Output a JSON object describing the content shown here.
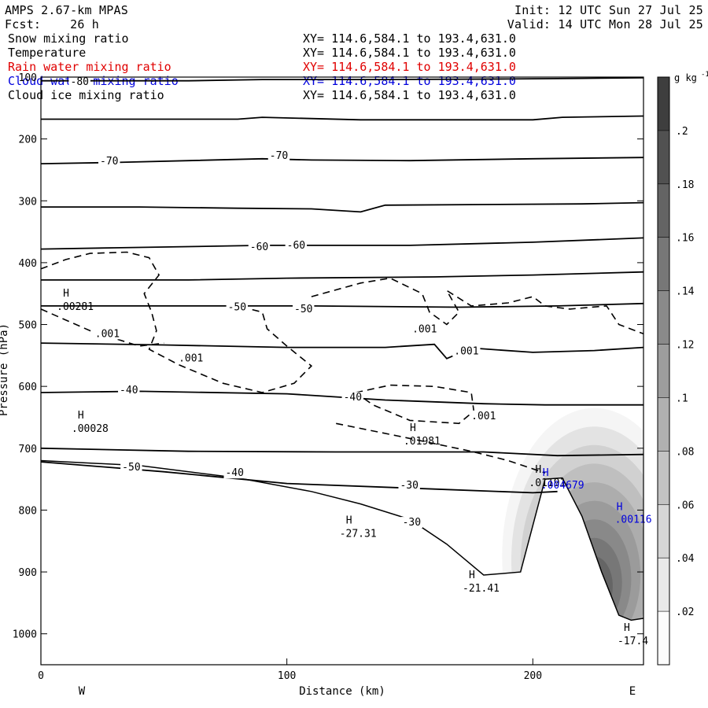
{
  "header": {
    "model": "AMPS 2.67-km MPAS",
    "fcst_label": "Fcst:",
    "fcst_value": "26 h",
    "init": "Init: 12 UTC Sun 27 Jul 25",
    "valid": "Valid: 14 UTC Mon 28 Jul 25"
  },
  "fields": [
    {
      "name": "Snow mixing ratio",
      "xy": "XY= 114.6,584.1 to 193.4,631.0",
      "color": "#000000"
    },
    {
      "name": "Temperature",
      "xy": "XY= 114.6,584.1 to 193.4,631.0",
      "color": "#000000"
    },
    {
      "name": "Rain water mixing ratio",
      "xy": "XY= 114.6,584.1 to 193.4,631.0",
      "color": "#e00000"
    },
    {
      "name": "Cloud water mixing ratio",
      "xy": "XY= 114.6,584.1 to 193.4,631.0",
      "color": "#0000dd"
    },
    {
      "name": "Cloud ice mixing ratio",
      "xy": "XY= 114.6,584.1 to 193.4,631.0",
      "color": "#000000"
    }
  ],
  "chart_data": {
    "type": "contour-cross-section",
    "xlabel": "Distance (km)",
    "ylabel": "Pressure (hPa)",
    "xlim": [
      0,
      245
    ],
    "ylim_hpa": [
      100,
      1050
    ],
    "y_inverted": true,
    "x_ticks": [
      0,
      100,
      200
    ],
    "y_ticks": [
      100,
      200,
      300,
      400,
      500,
      600,
      700,
      800,
      900,
      1000
    ],
    "x_tick_labels": [
      "0",
      "100",
      "200"
    ],
    "y_tick_labels": [
      "100",
      "200",
      "300",
      "400",
      "500",
      "600",
      "700",
      "800",
      "900",
      "1000"
    ],
    "direction_labels": {
      "left": "W",
      "right": "E"
    },
    "colorbar": {
      "unit": "g kg",
      "unit_exp": "-1",
      "levels": [
        0.02,
        0.04,
        0.06,
        0.08,
        0.1,
        0.12,
        0.14,
        0.16,
        0.18,
        0.2
      ],
      "level_labels": [
        ".02",
        ".04",
        ".06",
        ".08",
        ".1",
        ".12",
        ".14",
        ".16",
        ".18",
        ".2"
      ]
    },
    "temperature_lines": [
      {
        "points": [
          [
            0,
            106
          ],
          [
            60,
            106
          ],
          [
            90,
            104
          ],
          [
            140,
            104
          ],
          [
            190,
            103
          ],
          [
            220,
            102
          ],
          [
            245,
            101
          ]
        ],
        "label": "-80"
      },
      {
        "points": [
          [
            0,
            168
          ],
          [
            80,
            168
          ],
          [
            90,
            165
          ],
          [
            130,
            169
          ],
          [
            200,
            169
          ],
          [
            212,
            165
          ],
          [
            245,
            163
          ]
        ]
      },
      {
        "points": [
          [
            0,
            240
          ],
          [
            30,
            238
          ],
          [
            60,
            235
          ],
          [
            90,
            232
          ],
          [
            110,
            234
          ],
          [
            150,
            235
          ],
          [
            200,
            232
          ],
          [
            245,
            230
          ]
        ],
        "label": "-70"
      },
      {
        "points": [
          [
            0,
            310
          ],
          [
            40,
            310
          ],
          [
            80,
            312
          ],
          [
            110,
            313
          ],
          [
            130,
            318
          ],
          [
            140,
            307
          ],
          [
            180,
            306
          ],
          [
            220,
            305
          ],
          [
            245,
            303
          ]
        ]
      },
      {
        "points": [
          [
            0,
            378
          ],
          [
            30,
            376
          ],
          [
            60,
            374
          ],
          [
            90,
            372
          ],
          [
            150,
            372
          ],
          [
            200,
            367
          ],
          [
            245,
            360
          ]
        ],
        "label": "-60"
      },
      {
        "points": [
          [
            0,
            428
          ],
          [
            60,
            428
          ],
          [
            100,
            425
          ],
          [
            160,
            423
          ],
          [
            200,
            420
          ],
          [
            245,
            415
          ]
        ]
      },
      {
        "points": [
          [
            0,
            470
          ],
          [
            60,
            470
          ],
          [
            110,
            470
          ],
          [
            170,
            472
          ],
          [
            210,
            470
          ],
          [
            245,
            466
          ]
        ],
        "label": "-50"
      },
      {
        "points": [
          [
            0,
            530
          ],
          [
            50,
            533
          ],
          [
            100,
            537
          ],
          [
            140,
            537
          ],
          [
            160,
            532
          ],
          [
            165,
            555
          ],
          [
            175,
            538
          ],
          [
            200,
            545
          ],
          [
            225,
            542
          ],
          [
            245,
            537
          ]
        ]
      },
      {
        "points": [
          [
            0,
            610
          ],
          [
            40,
            608
          ],
          [
            100,
            612
          ],
          [
            140,
            622
          ],
          [
            180,
            628
          ],
          [
            205,
            630
          ],
          [
            245,
            630
          ]
        ],
        "label": "-40"
      },
      {
        "points": [
          [
            0,
            700
          ],
          [
            60,
            705
          ],
          [
            120,
            706
          ],
          [
            180,
            706
          ],
          [
            210,
            712
          ],
          [
            245,
            710
          ]
        ]
      },
      {
        "points": [
          [
            0,
            722
          ],
          [
            50,
            738
          ],
          [
            100,
            757
          ],
          [
            160,
            766
          ],
          [
            200,
            772
          ],
          [
            210,
            770
          ]
        ],
        "label": "-30"
      }
    ],
    "temperature_labels": [
      {
        "x": 12,
        "y": 113,
        "text": "-80"
      },
      {
        "x": 24,
        "y": 241,
        "text": "-70"
      },
      {
        "x": 93,
        "y": 232,
        "text": "-70"
      },
      {
        "x": 85,
        "y": 380,
        "text": "-60"
      },
      {
        "x": 100,
        "y": 377,
        "text": "-60"
      },
      {
        "x": 76,
        "y": 477,
        "text": "-50"
      },
      {
        "x": 103,
        "y": 480,
        "text": "-50"
      },
      {
        "x": 32,
        "y": 611,
        "text": "-40"
      },
      {
        "x": 75,
        "y": 745,
        "text": "-40"
      },
      {
        "x": 123,
        "y": 623,
        "text": "-40"
      },
      {
        "x": 33,
        "y": 736,
        "text": "-50"
      },
      {
        "x": 146,
        "y": 765,
        "text": "-30"
      },
      {
        "x": 147,
        "y": 825,
        "text": "-30"
      }
    ],
    "cloud_ice_contours": [
      {
        "points": [
          [
            0,
            410
          ],
          [
            10,
            395
          ],
          [
            20,
            385
          ],
          [
            35,
            383
          ],
          [
            44,
            392
          ],
          [
            48,
            420
          ],
          [
            42,
            450
          ],
          [
            45,
            480
          ],
          [
            47,
            510
          ],
          [
            44,
            540
          ],
          [
            56,
            565
          ],
          [
            74,
            595
          ],
          [
            90,
            610
          ],
          [
            103,
            595
          ],
          [
            110,
            567
          ],
          [
            100,
            535
          ],
          [
            92,
            507
          ],
          [
            90,
            480
          ],
          [
            80,
            470
          ]
        ],
        "label": ".001"
      },
      {
        "points": [
          [
            0,
            475
          ],
          [
            20,
            510
          ],
          [
            40,
            535
          ],
          [
            50,
            530
          ]
        ]
      },
      {
        "points": [
          [
            110,
            455
          ],
          [
            130,
            433
          ],
          [
            142,
            425
          ],
          [
            155,
            450
          ],
          [
            158,
            480
          ],
          [
            165,
            500
          ],
          [
            170,
            480
          ],
          [
            165,
            445
          ],
          [
            175,
            470
          ],
          [
            190,
            465
          ],
          [
            200,
            455
          ],
          [
            205,
            470
          ],
          [
            215,
            475
          ],
          [
            230,
            470
          ],
          [
            235,
            500
          ],
          [
            245,
            515
          ]
        ]
      },
      {
        "points": [
          [
            128,
            610
          ],
          [
            142,
            598
          ],
          [
            160,
            600
          ],
          [
            175,
            610
          ],
          [
            176,
            640
          ],
          [
            170,
            660
          ],
          [
            150,
            655
          ],
          [
            135,
            630
          ],
          [
            128,
            610
          ]
        ]
      },
      {
        "points": [
          [
            120,
            660
          ],
          [
            145,
            680
          ],
          [
            175,
            705
          ],
          [
            190,
            720
          ],
          [
            205,
            740
          ]
        ]
      }
    ],
    "cloud_ice_labels": [
      {
        "x": 9,
        "y": 455,
        "text": "H",
        "sub": ".00281"
      },
      {
        "x": 22,
        "y": 520,
        "text": ".001"
      },
      {
        "x": 56,
        "y": 560,
        "text": ".001"
      },
      {
        "x": 151,
        "y": 513,
        "text": ".001"
      },
      {
        "x": 168,
        "y": 548,
        "text": ".001"
      },
      {
        "x": 175,
        "y": 653,
        "text": ".001"
      },
      {
        "x": 15,
        "y": 652,
        "text": "H",
        "sub": ".00028"
      },
      {
        "x": 150,
        "y": 672,
        "text": "H",
        "sub": ".01981"
      },
      {
        "x": 201,
        "y": 740,
        "text": "H",
        "sub": ".01191"
      }
    ],
    "snow_maxima": [
      {
        "x": 124,
        "y": 822,
        "text": "H",
        "sub": "-27.31"
      },
      {
        "x": 174,
        "y": 910,
        "text": "H",
        "sub": "-21.41"
      },
      {
        "x": 237,
        "y": 995,
        "text": "H",
        "sub": "-17.4"
      }
    ],
    "cloud_water_labels": [
      {
        "x": 204,
        "y": 745,
        "text": "H",
        "sub": ".004679"
      },
      {
        "x": 234,
        "y": 800,
        "text": "H",
        "sub": ".00116"
      }
    ],
    "terrain": [
      [
        0,
        720
      ],
      [
        40,
        728
      ],
      [
        80,
        748
      ],
      [
        110,
        770
      ],
      [
        130,
        790
      ],
      [
        150,
        815
      ],
      [
        165,
        855
      ],
      [
        180,
        905
      ],
      [
        195,
        900
      ],
      [
        205,
        750
      ],
      [
        212,
        748
      ],
      [
        220,
        810
      ],
      [
        228,
        900
      ],
      [
        235,
        970
      ],
      [
        240,
        978
      ],
      [
        245,
        975
      ]
    ],
    "shading_band": {
      "x_center": 225,
      "p_top": 695,
      "max_value": 0.2
    }
  }
}
